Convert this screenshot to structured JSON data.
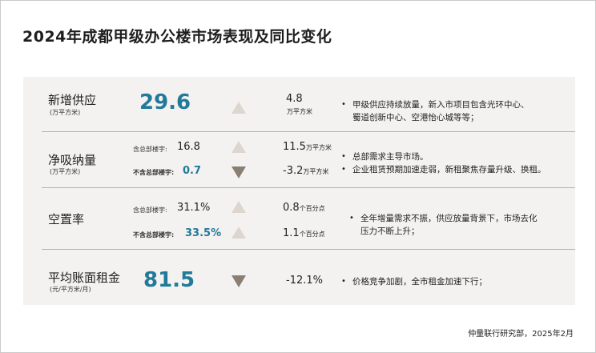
{
  "title": "2024年成都甲级办公楼市场表现及同比变化",
  "rows": {
    "supply": {
      "label": "新增供应",
      "unit": "(万平方米)",
      "value": "29.6",
      "trend": "up",
      "change": "4.8",
      "change_unit": "万平方米",
      "notes": [
        "甲级供应持续放量，新入市项目包含光环中心、",
        "蜀道创新中心、空港怡心城等等；"
      ]
    },
    "absorption": {
      "label": "净吸纳量",
      "unit": "(万平方米)",
      "sub1_label": "含总部楼宇:",
      "sub1_value": "16.8",
      "sub1_trend": "up",
      "sub1_change": "11.5",
      "sub1_change_unit": "万平方米",
      "sub2_label": "不含总部楼宇:",
      "sub2_value": "0.7",
      "sub2_trend": "down",
      "sub2_change": "-3.2",
      "sub2_change_unit": "万平方米",
      "notes": [
        "总部需求主导市场。",
        "企业租赁预期加速走弱，新租聚焦存量升级、换租。"
      ]
    },
    "vacancy": {
      "label": "空置率",
      "sub1_label": "含总部楼宇:",
      "sub1_value": "31.1%",
      "sub1_trend": "up",
      "sub1_change": "0.8",
      "sub1_change_unit": "个百分点",
      "sub2_label": "不含总部楼宇:",
      "sub2_value": "33.5%",
      "sub2_trend": "up",
      "sub2_change": "1.1",
      "sub2_change_unit": "个百分点",
      "notes": [
        "全年增量需求不振，供应放量背景下，市场去化",
        "压力不断上升；"
      ]
    },
    "rent": {
      "label": "平均账面租金",
      "unit": "(元/平方米/月)",
      "value": "81.5",
      "trend": "down",
      "change": "-12.1%",
      "notes": [
        "价格竞争加剧，全市租金加速下行；"
      ]
    }
  },
  "source": "仲量联行研究部，2025年2月",
  "colors": {
    "accent_blue": "#217a9a",
    "panel_bg": "#f4f2f0",
    "arrow_up": "#dcd6cf",
    "arrow_down": "#8a7f74"
  }
}
